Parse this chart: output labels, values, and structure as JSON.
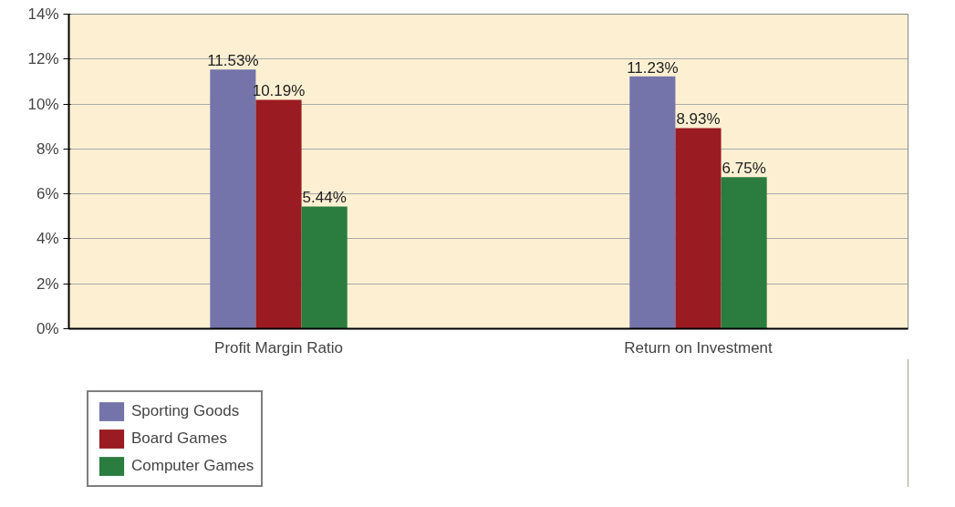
{
  "chart_data": {
    "type": "bar",
    "categories": [
      "Profit Margin Ratio",
      "Return on Investment"
    ],
    "series": [
      {
        "name": "Sporting Goods",
        "color": "#7474ab",
        "values": [
          11.53,
          11.23
        ],
        "value_labels": [
          "11.53%",
          "11.23%"
        ]
      },
      {
        "name": "Board Games",
        "color": "#9a1b21",
        "values": [
          10.19,
          8.93
        ],
        "value_labels": [
          "10.19%",
          "8.93%"
        ]
      },
      {
        "name": "Computer Games",
        "color": "#2b7c3f",
        "values": [
          5.44,
          6.75
        ],
        "value_labels": [
          "5.44%",
          "6.75%"
        ]
      }
    ],
    "ylim": [
      0,
      14
    ],
    "yticks": [
      {
        "value": 0,
        "label": "0%"
      },
      {
        "value": 2,
        "label": "2%"
      },
      {
        "value": 4,
        "label": "4%"
      },
      {
        "value": 6,
        "label": "6%"
      },
      {
        "value": 8,
        "label": "8%"
      },
      {
        "value": 10,
        "label": "10%"
      },
      {
        "value": 12,
        "label": "12%"
      },
      {
        "value": 14,
        "label": "14%"
      }
    ],
    "grid": "y",
    "legend": "bottom left"
  }
}
